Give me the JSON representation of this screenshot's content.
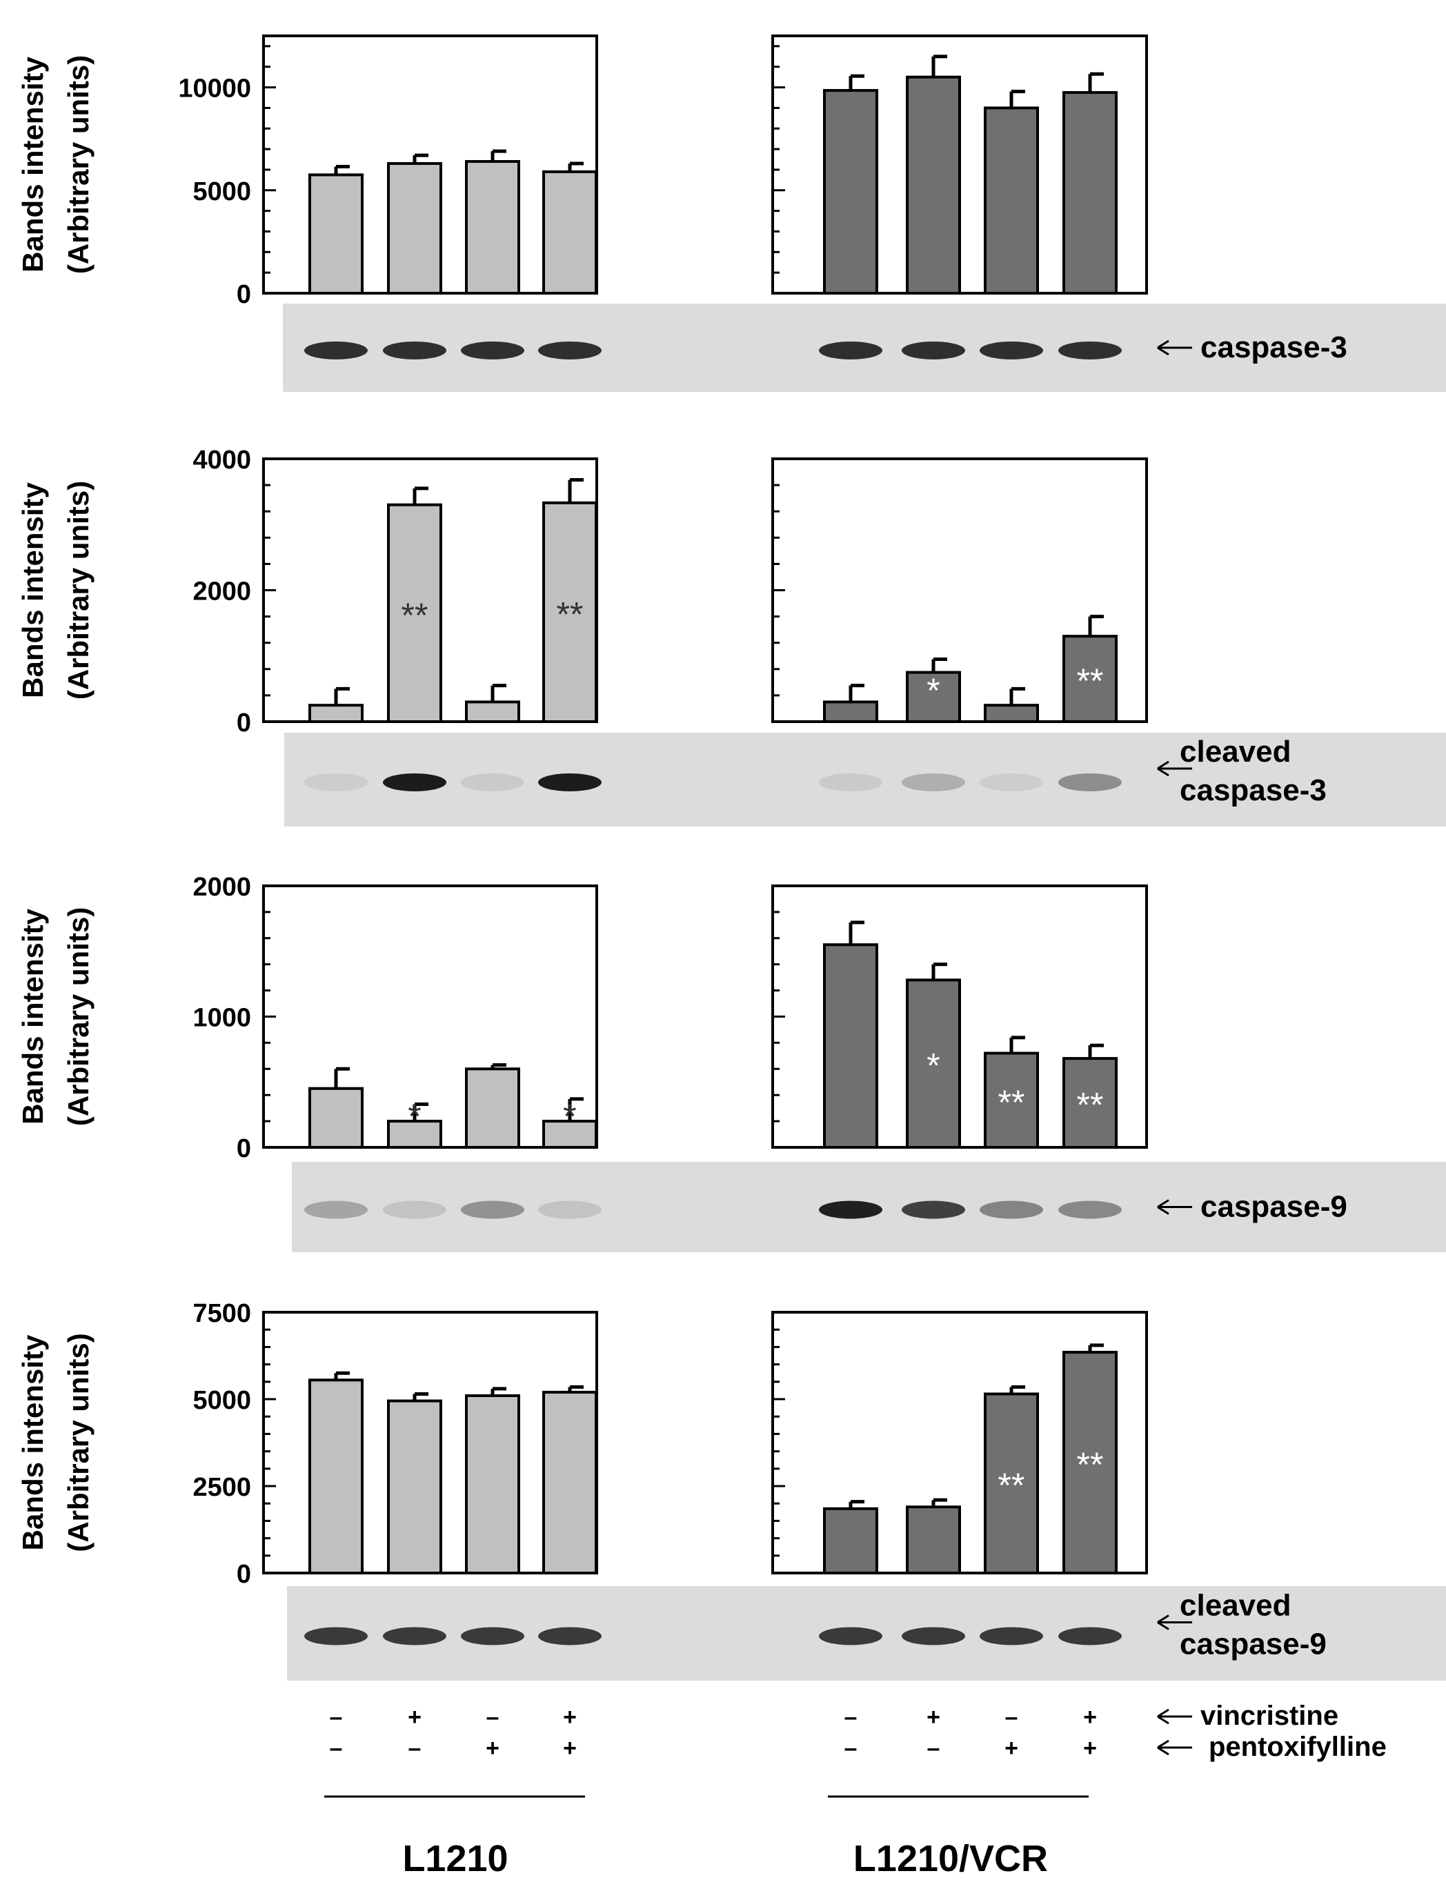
{
  "y_axis_label_line1": "Bands intensity",
  "y_axis_label_line2": "(Arbitrary units)",
  "colors": {
    "L1210": "#c0c0c0",
    "L1210/VCR": "#707070"
  },
  "conditions": {
    "labels": [
      "vincristine",
      "pentoxifylline"
    ],
    "vincristine": [
      "–",
      "+",
      "–",
      "+"
    ],
    "pentoxifylline": [
      "–",
      "–",
      "+",
      "+"
    ]
  },
  "group_labels": [
    "L1210",
    "L1210/VCR"
  ],
  "chart_data": [
    {
      "type": "bar",
      "protein": "caspase-3",
      "ylim": [
        0,
        12500
      ],
      "yticks": [
        0,
        5000,
        10000
      ],
      "panels": [
        {
          "cell_line": "L1210",
          "values": [
            5750,
            6300,
            6400,
            5900
          ],
          "errors": [
            400,
            400,
            500,
            400
          ],
          "sig": [
            "",
            "",
            "",
            ""
          ]
        },
        {
          "cell_line": "L1210/VCR",
          "values": [
            9850,
            10500,
            9000,
            9750
          ],
          "errors": [
            700,
            1000,
            800,
            900
          ],
          "sig": [
            "",
            "",
            "",
            ""
          ]
        }
      ]
    },
    {
      "type": "bar",
      "protein": "cleaved caspase-3",
      "ylim": [
        0,
        4000
      ],
      "yticks": [
        0,
        2000,
        4000
      ],
      "panels": [
        {
          "cell_line": "L1210",
          "values": [
            250,
            3300,
            300,
            3330
          ],
          "errors": [
            250,
            250,
            250,
            350
          ],
          "sig": [
            "",
            "**",
            "",
            "**"
          ]
        },
        {
          "cell_line": "L1210/VCR",
          "values": [
            300,
            750,
            250,
            1300
          ],
          "errors": [
            250,
            200,
            250,
            300
          ],
          "sig": [
            "",
            "*",
            "",
            "**"
          ]
        }
      ]
    },
    {
      "type": "bar",
      "protein": "caspase-9",
      "ylim": [
        0,
        2000
      ],
      "yticks": [
        0,
        1000,
        2000
      ],
      "panels": [
        {
          "cell_line": "L1210",
          "values": [
            450,
            200,
            600,
            200
          ],
          "errors": [
            150,
            130,
            30,
            170
          ],
          "sig": [
            "",
            "*",
            "",
            "*"
          ]
        },
        {
          "cell_line": "L1210/VCR",
          "values": [
            1550,
            1280,
            720,
            680
          ],
          "errors": [
            170,
            120,
            120,
            100
          ],
          "sig": [
            "",
            "*",
            "**",
            "**"
          ]
        }
      ]
    },
    {
      "type": "bar",
      "protein": "cleaved caspase-9",
      "ylim": [
        0,
        7500
      ],
      "yticks": [
        0,
        2500,
        5000,
        7500
      ],
      "panels": [
        {
          "cell_line": "L1210",
          "values": [
            5550,
            4950,
            5100,
            5200
          ],
          "errors": [
            200,
            200,
            200,
            150
          ],
          "sig": [
            "",
            "",
            "",
            ""
          ]
        },
        {
          "cell_line": "L1210/VCR",
          "values": [
            1850,
            1900,
            5150,
            6350
          ],
          "errors": [
            200,
            200,
            200,
            200
          ],
          "sig": [
            "",
            "",
            "**",
            "**"
          ]
        }
      ]
    }
  ],
  "blot_labels": [
    [
      "caspase-3"
    ],
    [
      "cleaved",
      "caspase-3"
    ],
    [
      "caspase-9"
    ],
    [
      "cleaved",
      "caspase-9"
    ]
  ]
}
